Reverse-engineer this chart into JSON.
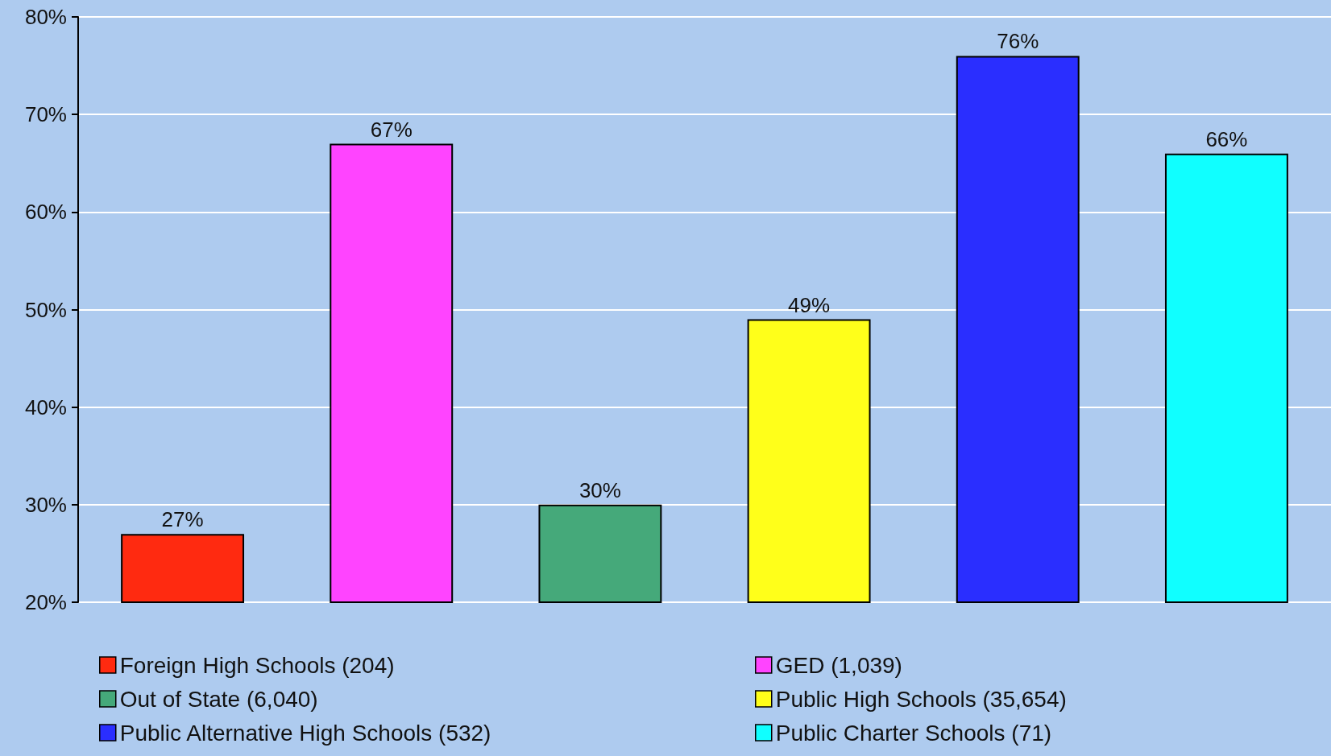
{
  "chart_data": {
    "type": "bar",
    "categories": [
      null,
      null,
      null,
      null,
      null,
      null
    ],
    "series": [
      {
        "name": "Foreign High Schools (204)",
        "color": "#ff2a10",
        "values": [
          27,
          null,
          null,
          null,
          null,
          null
        ],
        "value_labels": [
          "27%",
          null,
          null,
          null,
          null,
          null
        ]
      },
      {
        "name": "GED (1,039)",
        "color": "#ff44ff",
        "values": [
          null,
          67,
          null,
          null,
          null,
          null
        ],
        "value_labels": [
          null,
          "67%",
          null,
          null,
          null,
          null
        ]
      },
      {
        "name": "Out of State (6,040)",
        "color": "#45a97a",
        "values": [
          null,
          null,
          30,
          null,
          null,
          null
        ],
        "value_labels": [
          null,
          null,
          "30%",
          null,
          null,
          null
        ]
      },
      {
        "name": "Public High Schools (35,654)",
        "color": "#ffff1a",
        "values": [
          null,
          null,
          null,
          49,
          null,
          null
        ],
        "value_labels": [
          null,
          null,
          null,
          "49%",
          null,
          null
        ]
      },
      {
        "name": "Public Alternative High Schools (532)",
        "color": "#2a2eff",
        "values": [
          null,
          null,
          null,
          null,
          76,
          null
        ],
        "value_labels": [
          null,
          null,
          null,
          null,
          "76%",
          null
        ]
      },
      {
        "name": "Public Charter Schools (71)",
        "color": "#10ffff",
        "values": [
          null,
          null,
          null,
          null,
          null,
          66
        ],
        "value_labels": [
          null,
          null,
          null,
          null,
          null,
          "66%"
        ]
      }
    ],
    "ylim": [
      20,
      80
    ],
    "yticks": [
      {
        "value": 20,
        "label": "20%"
      },
      {
        "value": 30,
        "label": "30%"
      },
      {
        "value": 40,
        "label": "40%"
      },
      {
        "value": 50,
        "label": "50%"
      },
      {
        "value": 60,
        "label": "60%"
      },
      {
        "value": 70,
        "label": "70%"
      },
      {
        "value": 80,
        "label": "80%"
      }
    ],
    "grid": "y",
    "legend": "bottom"
  }
}
